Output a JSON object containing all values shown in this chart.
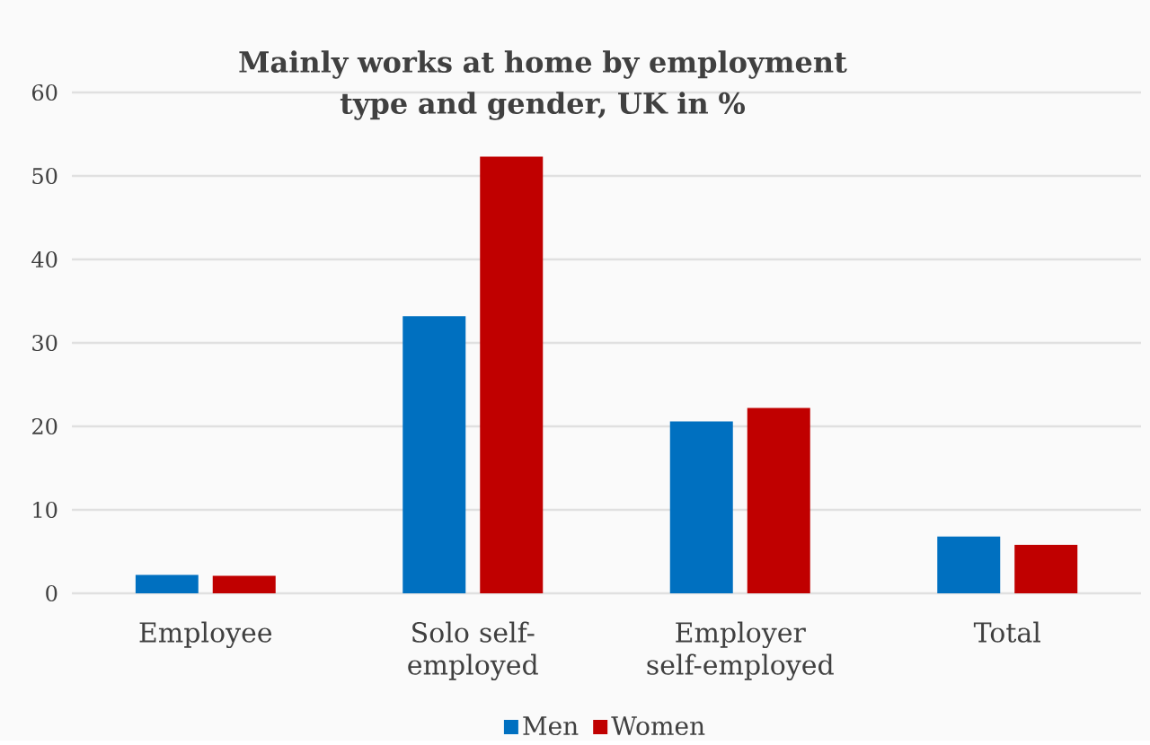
{
  "chart_data": {
    "type": "bar",
    "title": "Mainly works at home by employment type and gender, UK in  %",
    "categories": [
      "Employee",
      "Solo self-employed",
      "Employer self-employed",
      "Total"
    ],
    "series": [
      {
        "name": "Men",
        "color": "#0070c0",
        "values": [
          2.2,
          33.2,
          20.6,
          6.8
        ]
      },
      {
        "name": "Women",
        "color": "#c00000",
        "values": [
          2.1,
          52.3,
          22.2,
          5.8
        ]
      }
    ],
    "ylim": [
      0,
      60
    ],
    "yticks": [
      0,
      10,
      20,
      30,
      40,
      50,
      60
    ],
    "grid": "y",
    "legend": "bottom"
  }
}
